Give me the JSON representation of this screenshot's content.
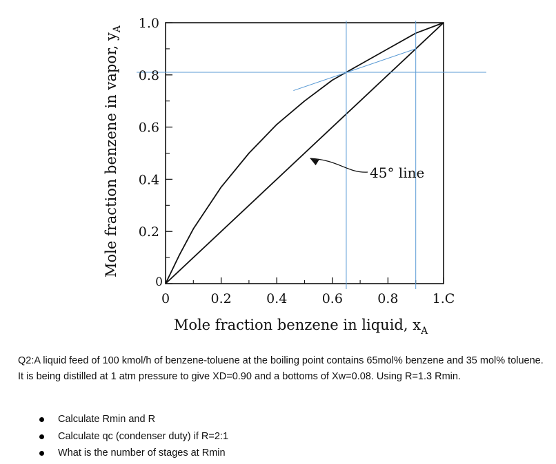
{
  "chart_data": {
    "type": "line",
    "xlabel": "Mole fraction benzene in liquid, x",
    "xlabel_sub": "A",
    "ylabel": "Mole fraction benzene in vapor, y",
    "ylabel_sub": "A",
    "xlim": [
      0,
      1.0
    ],
    "ylim": [
      0,
      1.0
    ],
    "x_ticks": [
      {
        "value": 0,
        "label": "0"
      },
      {
        "value": 0.2,
        "label": "0.2"
      },
      {
        "value": 0.4,
        "label": "0.4"
      },
      {
        "value": 0.6,
        "label": "0.6"
      },
      {
        "value": 0.8,
        "label": "0.8"
      },
      {
        "value": 1.0,
        "label": "1.C"
      }
    ],
    "y_ticks": [
      {
        "value": 0,
        "label": "0"
      },
      {
        "value": 0.2,
        "label": "0.2"
      },
      {
        "value": 0.4,
        "label": "0.4"
      },
      {
        "value": 0.6,
        "label": "0.6"
      },
      {
        "value": 0.8,
        "label": "0.8"
      },
      {
        "value": 1.0,
        "label": "1.0"
      }
    ],
    "series": [
      {
        "x": [
          0,
          0.05,
          0.1,
          0.2,
          0.3,
          0.4,
          0.5,
          0.6,
          0.65,
          0.7,
          0.8,
          0.9,
          1.0
        ],
        "values": [
          0,
          0.11,
          0.21,
          0.37,
          0.5,
          0.61,
          0.7,
          0.78,
          0.81,
          0.84,
          0.9,
          0.96,
          1.0
        ]
      },
      {
        "x": [
          0,
          1.0
        ],
        "values": [
          0,
          1.0
        ]
      }
    ],
    "annotations": [
      {
        "text": "45° line",
        "arrow_to": [
          0.52,
          0.48
        ]
      }
    ],
    "overlay_lines": [
      {
        "kind": "vertical",
        "x": 0.65,
        "color": "#5b9bd5"
      },
      {
        "kind": "vertical",
        "x": 0.9,
        "color": "#5b9bd5"
      },
      {
        "kind": "horizontal",
        "y": 0.81,
        "color": "#5b9bd5"
      },
      {
        "kind": "operating",
        "from": [
          0.46,
          0.74
        ],
        "to": [
          0.9,
          0.9
        ],
        "color": "#5b9bd5"
      }
    ],
    "grid": false
  },
  "question": {
    "text": "Q2:A liquid feed of 100 kmol/h of benzene-toluene at the boiling point contains 65mol% benzene and 35 mol% toluene. It is being distilled at 1 atm pressure to give XD=0.90 and a bottoms of Xw=0.08. Using R=1.3 Rmin.",
    "bullets": [
      "Calculate Rmin and R",
      "Calculate qc (condenser duty) if R=2:1",
      "What is the number of stages at Rmin"
    ]
  },
  "colors": {
    "curve": "#111111",
    "overlay": "#5b9bd5",
    "highlight": "#fff200"
  }
}
